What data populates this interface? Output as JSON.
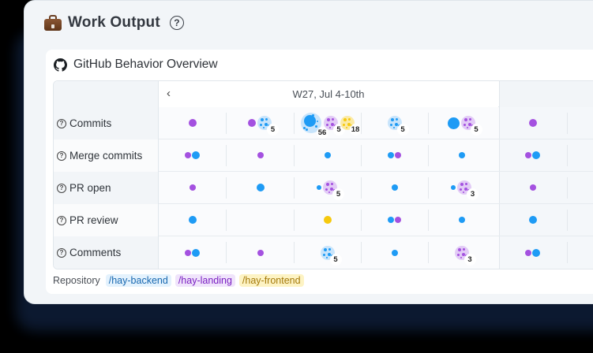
{
  "card": {
    "title": "Work Output",
    "title_icon": "briefcase-icon",
    "help_icon": "?"
  },
  "section": {
    "title": "GitHub Behavior Overview",
    "icon": "github-icon"
  },
  "colors": {
    "backend": "#1e9bf5",
    "landing": "#a451e0",
    "frontend": "#f6c90e",
    "backend_light": "#c8e4fb",
    "landing_light": "#e2cbf6",
    "frontend_light": "#fbeaa6"
  },
  "table": {
    "prev_label": "‹",
    "weeks": [
      {
        "label": "W27, Jul 4-10th"
      },
      {
        "label": ""
      }
    ],
    "rows": [
      {
        "label": "Commits",
        "help": "?",
        "cells": [
          [
            {
              "repo": "landing",
              "size": "md"
            }
          ],
          [
            {
              "repo": "landing",
              "size": "md"
            },
            {
              "repo": "backend",
              "cluster": true,
              "count": "5"
            }
          ],
          [
            {
              "repo": "backend",
              "cluster": true,
              "big": true,
              "count": "56"
            },
            {
              "repo": "landing",
              "cluster": true,
              "count": "5"
            },
            {
              "repo": "frontend",
              "cluster": true,
              "count": "18"
            }
          ],
          [
            {
              "repo": "backend",
              "cluster": true,
              "count": "5"
            }
          ],
          [
            {
              "repo": "backend",
              "size": "lg"
            },
            {
              "repo": "landing",
              "cluster": true,
              "count": "5"
            }
          ],
          [
            {
              "repo": "landing",
              "size": "md"
            }
          ],
          [
            {
              "repo": "landing",
              "size": "md"
            }
          ]
        ]
      },
      {
        "label": "Merge commits",
        "help": "?",
        "cells": [
          [
            {
              "repo": "landing",
              "size": "sm"
            },
            {
              "repo": "backend",
              "size": "md"
            }
          ],
          [
            {
              "repo": "landing",
              "size": "sm"
            }
          ],
          [
            {
              "repo": "backend",
              "size": "sm"
            }
          ],
          [
            {
              "repo": "backend",
              "size": "sm"
            },
            {
              "repo": "landing",
              "size": "sm"
            }
          ],
          [
            {
              "repo": "backend",
              "size": "sm"
            }
          ],
          [
            {
              "repo": "landing",
              "size": "sm"
            },
            {
              "repo": "backend",
              "size": "md"
            }
          ],
          []
        ]
      },
      {
        "label": "PR open",
        "help": "?",
        "cells": [
          [
            {
              "repo": "landing",
              "size": "sm"
            }
          ],
          [
            {
              "repo": "backend",
              "size": "md"
            }
          ],
          [
            {
              "repo": "backend",
              "size": "xs"
            },
            {
              "repo": "landing",
              "cluster": true,
              "count": "5"
            }
          ],
          [
            {
              "repo": "backend",
              "size": "sm"
            }
          ],
          [
            {
              "repo": "backend",
              "size": "xs"
            },
            {
              "repo": "landing",
              "cluster": true,
              "count": "3"
            }
          ],
          [
            {
              "repo": "landing",
              "size": "sm"
            }
          ],
          []
        ]
      },
      {
        "label": "PR review",
        "help": "?",
        "cells": [
          [
            {
              "repo": "backend",
              "size": "md"
            }
          ],
          [],
          [
            {
              "repo": "frontend",
              "size": "md"
            }
          ],
          [
            {
              "repo": "backend",
              "size": "sm"
            },
            {
              "repo": "landing",
              "size": "sm"
            }
          ],
          [
            {
              "repo": "backend",
              "size": "sm"
            }
          ],
          [
            {
              "repo": "backend",
              "size": "md"
            }
          ],
          []
        ]
      },
      {
        "label": "Comments",
        "help": "?",
        "cells": [
          [
            {
              "repo": "landing",
              "size": "sm"
            },
            {
              "repo": "backend",
              "size": "md"
            }
          ],
          [
            {
              "repo": "landing",
              "size": "sm"
            }
          ],
          [
            {
              "repo": "backend",
              "cluster": true,
              "count": "5"
            }
          ],
          [
            {
              "repo": "backend",
              "size": "sm"
            }
          ],
          [
            {
              "repo": "landing",
              "cluster": true,
              "count": "3"
            }
          ],
          [
            {
              "repo": "landing",
              "size": "sm"
            },
            {
              "repo": "backend",
              "size": "md"
            }
          ],
          []
        ]
      }
    ]
  },
  "legend": {
    "label": "Repository",
    "items": [
      {
        "name": "/hay-backend",
        "repo": "backend",
        "text_color": "#1868b0",
        "bg": "#e4f2fd"
      },
      {
        "name": "/hay-landing",
        "repo": "landing",
        "text_color": "#7a1fc2",
        "bg": "#f0e4fb"
      },
      {
        "name": "/hay-frontend",
        "repo": "frontend",
        "text_color": "#a57a0a",
        "bg": "#fdf3c4"
      }
    ]
  }
}
